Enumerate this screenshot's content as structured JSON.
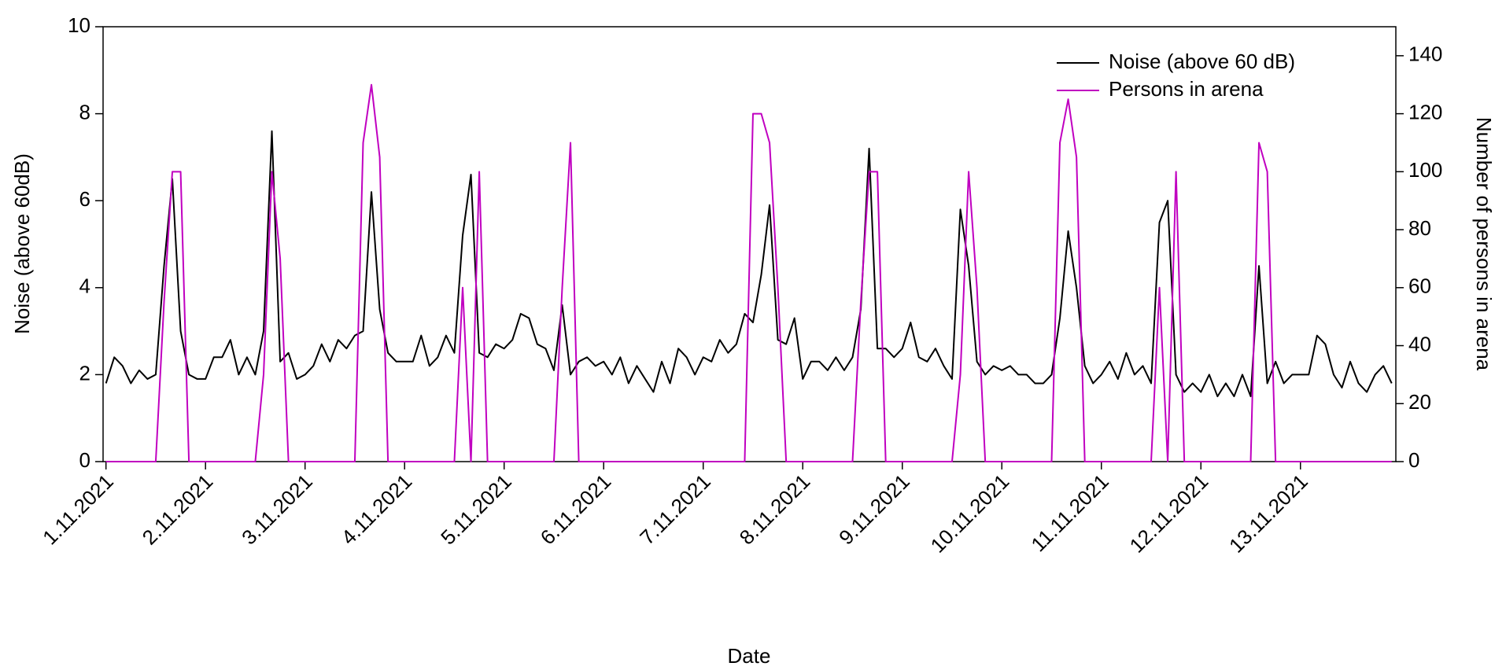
{
  "chart_data": {
    "type": "line",
    "xlabel": "Date",
    "ylabel": "Noise (above 60dB)",
    "y2label": "Number of persons in arena",
    "legend": "top-right",
    "x": [
      0,
      2,
      4,
      6,
      8,
      10,
      12,
      14,
      16,
      18,
      20,
      22,
      24,
      26,
      28,
      30,
      32,
      34,
      36,
      38,
      40,
      42,
      44,
      46,
      48,
      50,
      52,
      54,
      56,
      58,
      60,
      62,
      64,
      66,
      68,
      70,
      72,
      74,
      76,
      78,
      80,
      82,
      84,
      86,
      88,
      90,
      92,
      94,
      96,
      98,
      100,
      102,
      104,
      106,
      108,
      110,
      112,
      114,
      116,
      118,
      120,
      122,
      124,
      126,
      128,
      130,
      132,
      134,
      136,
      138,
      140,
      142,
      144,
      146,
      148,
      150,
      152,
      154,
      156,
      158,
      160,
      162,
      164,
      166,
      168,
      170,
      172,
      174,
      176,
      178,
      180,
      182,
      184,
      186,
      188,
      190,
      192,
      194,
      196,
      198,
      200,
      202,
      204,
      206,
      208,
      210,
      212,
      214,
      216,
      218,
      220,
      222,
      224,
      226,
      228,
      230,
      232,
      234,
      236,
      238,
      240,
      242,
      244,
      246,
      248,
      250,
      252,
      254,
      256,
      258,
      260,
      262,
      264,
      266,
      268,
      270,
      272,
      274,
      276,
      278,
      280,
      282,
      284,
      286,
      288,
      290,
      292,
      294,
      296,
      298,
      300,
      302,
      304,
      306,
      308,
      310
    ],
    "xlim": [
      -0.7,
      311
    ],
    "xticks": [
      {
        "value": 0,
        "label": "1.11.2021"
      },
      {
        "value": 24,
        "label": "2.11.2021"
      },
      {
        "value": 48,
        "label": "3.11.2021"
      },
      {
        "value": 72,
        "label": "4.11.2021"
      },
      {
        "value": 96,
        "label": "5.11.2021"
      },
      {
        "value": 120,
        "label": "6.11.2021"
      },
      {
        "value": 144,
        "label": "7.11.2021"
      },
      {
        "value": 168,
        "label": "8.11.2021"
      },
      {
        "value": 192,
        "label": "9.11.2021"
      },
      {
        "value": 216,
        "label": "10.11.2021"
      },
      {
        "value": 240,
        "label": "11.11.2021"
      },
      {
        "value": 264,
        "label": "12.11.2021"
      },
      {
        "value": 288,
        "label": "13.11.2021"
      }
    ],
    "ylim": [
      0,
      10
    ],
    "yticks": [
      0,
      2,
      4,
      6,
      8,
      10
    ],
    "y2lim": [
      0,
      150
    ],
    "y2ticks": [
      0,
      20,
      40,
      60,
      80,
      100,
      120,
      140
    ],
    "series": [
      {
        "name": "Noise (above 60 dB)",
        "color": "#000000",
        "values": [
          1.8,
          2.4,
          2.2,
          1.8,
          2.1,
          1.9,
          2.0,
          4.5,
          6.5,
          3.0,
          2.0,
          1.9,
          1.9,
          2.4,
          2.4,
          2.8,
          2.0,
          2.4,
          2.0,
          3.0,
          7.6,
          2.3,
          2.5,
          1.9,
          2.0,
          2.2,
          2.7,
          2.3,
          2.8,
          2.6,
          2.9,
          3.0,
          6.2,
          3.5,
          2.5,
          2.3,
          2.3,
          2.3,
          2.9,
          2.2,
          2.4,
          2.9,
          2.5,
          5.2,
          6.6,
          2.5,
          2.4,
          2.7,
          2.6,
          2.8,
          3.4,
          3.3,
          2.7,
          2.6,
          2.1,
          3.6,
          2.0,
          2.3,
          2.4,
          2.2,
          2.3,
          2.0,
          2.4,
          1.8,
          2.2,
          1.9,
          1.6,
          2.3,
          1.8,
          2.6,
          2.4,
          2.0,
          2.4,
          2.3,
          2.8,
          2.5,
          2.7,
          3.4,
          3.2,
          4.3,
          5.9,
          2.8,
          2.7,
          3.3,
          1.9,
          2.3,
          2.3,
          2.1,
          2.4,
          2.1,
          2.4,
          3.5,
          7.2,
          2.6,
          2.6,
          2.4,
          2.6,
          3.2,
          2.4,
          2.3,
          2.6,
          2.2,
          1.9,
          5.8,
          4.5,
          2.3,
          2.0,
          2.2,
          2.1,
          2.2,
          2.0,
          2.0,
          1.8,
          1.8,
          2.0,
          3.3,
          5.3,
          4.0,
          2.2,
          1.8,
          2.0,
          2.3,
          1.9,
          2.5,
          2.0,
          2.2,
          1.8,
          5.5,
          6.0,
          2.0,
          1.6,
          1.8,
          1.6,
          2.0,
          1.5,
          1.8,
          1.5,
          2.0,
          1.5,
          4.5,
          1.8,
          2.3,
          1.8,
          2.0,
          2.0,
          2.0,
          2.9,
          2.7,
          2.0,
          1.7,
          2.3,
          1.8,
          1.6,
          2.0,
          2.2,
          1.8
        ]
      },
      {
        "name": "Persons in arena",
        "color": "#c000c0",
        "axis": "y2",
        "values": [
          0,
          0,
          0,
          0,
          0,
          0,
          0,
          55,
          100,
          100,
          0,
          0,
          0,
          0,
          0,
          0,
          0,
          0,
          0,
          30,
          100,
          70,
          0,
          0,
          0,
          0,
          0,
          0,
          0,
          0,
          0,
          110,
          130,
          105,
          0,
          0,
          0,
          0,
          0,
          0,
          0,
          0,
          0,
          60,
          0,
          100,
          0,
          0,
          0,
          0,
          0,
          0,
          0,
          0,
          0,
          60,
          110,
          0,
          0,
          0,
          0,
          0,
          0,
          0,
          0,
          0,
          0,
          0,
          0,
          0,
          0,
          0,
          0,
          0,
          0,
          0,
          0,
          0,
          120,
          120,
          110,
          60,
          0,
          0,
          0,
          0,
          0,
          0,
          0,
          0,
          0,
          55,
          100,
          100,
          0,
          0,
          0,
          0,
          0,
          0,
          0,
          0,
          0,
          30,
          100,
          60,
          0,
          0,
          0,
          0,
          0,
          0,
          0,
          0,
          0,
          110,
          125,
          105,
          0,
          0,
          0,
          0,
          0,
          0,
          0,
          0,
          0,
          60,
          0,
          100,
          0,
          0,
          0,
          0,
          0,
          0,
          0,
          0,
          0,
          110,
          100,
          0,
          0,
          0,
          0,
          0,
          0,
          0,
          0,
          0,
          0,
          0,
          0,
          0,
          0,
          0
        ]
      }
    ]
  }
}
